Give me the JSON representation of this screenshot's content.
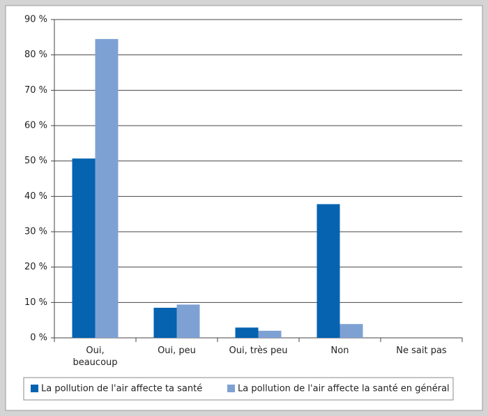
{
  "chart_data": {
    "type": "bar",
    "categories": [
      "Oui,\nbeaucoup",
      "Oui, peu",
      "Oui, très peu",
      "Non",
      "Ne sait pas"
    ],
    "series": [
      {
        "name": "La pollution de l'air affecte ta santé",
        "color": "#0563b0",
        "values": [
          50.7,
          8.5,
          2.9,
          37.8,
          0
        ]
      },
      {
        "name": "La pollution de l'air affecte la santé en général",
        "color": "#7ea1d4",
        "values": [
          84.5,
          9.4,
          2.0,
          3.9,
          0
        ]
      }
    ],
    "ylim": [
      0,
      90
    ],
    "yticks": [
      {
        "value": 0,
        "label": "0 %"
      },
      {
        "value": 10,
        "label": "10 %"
      },
      {
        "value": 20,
        "label": "20 %"
      },
      {
        "value": 30,
        "label": "30 %"
      },
      {
        "value": 40,
        "label": "40 %"
      },
      {
        "value": 50,
        "label": "50 %"
      },
      {
        "value": 60,
        "label": "60 %"
      },
      {
        "value": 70,
        "label": "70 %"
      },
      {
        "value": 80,
        "label": "80 %"
      },
      {
        "value": 90,
        "label": "90 %"
      }
    ],
    "grid": true
  }
}
